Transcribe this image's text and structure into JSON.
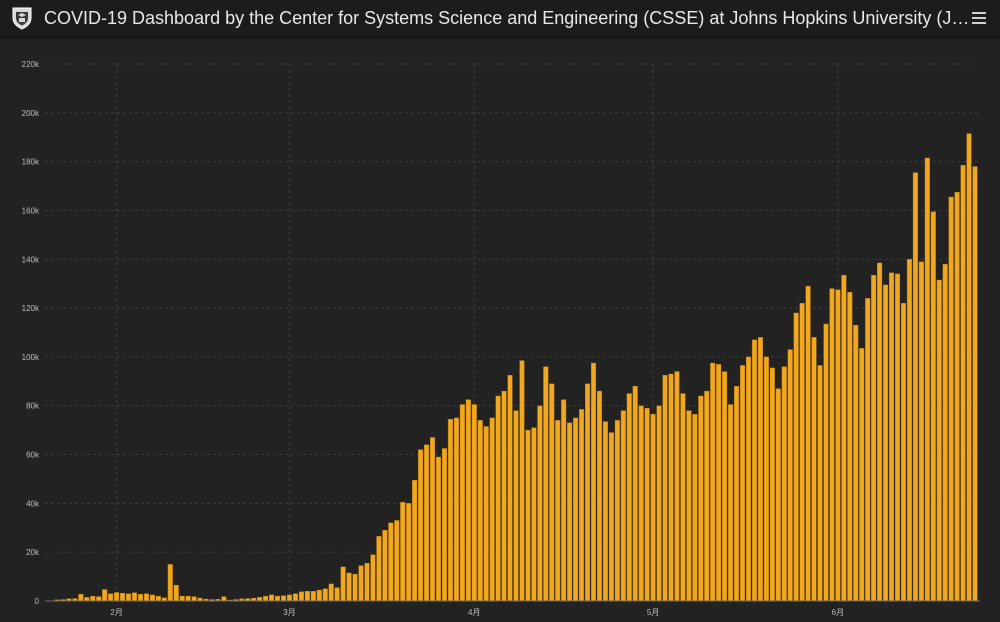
{
  "header": {
    "title": "COVID-19 Dashboard by the Center for Systems Science and Engineering (CSSE) at Johns Hopkins University (J…",
    "logo_icon": "university-crest-icon",
    "menu_icon": "hamburger-menu-icon"
  },
  "colors": {
    "bar": "#f2a81e",
    "bar_outline": "#b67a0c",
    "grid": "#3d3d3d",
    "panel_bg": "#222222"
  },
  "chart_data": {
    "type": "bar",
    "title": "",
    "xlabel": "",
    "ylabel": "",
    "ylim": [
      0,
      220000
    ],
    "yticks": [
      0,
      20000,
      40000,
      60000,
      80000,
      100000,
      120000,
      140000,
      160000,
      180000,
      200000,
      220000
    ],
    "ytick_labels": [
      "0",
      "20k",
      "40k",
      "60k",
      "80k",
      "100k",
      "120k",
      "140k",
      "160k",
      "180k",
      "200k",
      "220k"
    ],
    "x_start": "2020-01-22",
    "xticks": [
      {
        "date": "2020-02-01",
        "label": "2月"
      },
      {
        "date": "2020-03-01",
        "label": "3月"
      },
      {
        "date": "2020-04-01",
        "label": "4月"
      },
      {
        "date": "2020-05-01",
        "label": "5月"
      },
      {
        "date": "2020-06-01",
        "label": "6月"
      }
    ],
    "grid": true,
    "values": [
      500,
      600,
      900,
      1000,
      2800,
      1500,
      2000,
      1800,
      4700,
      3000,
      3500,
      3200,
      3000,
      3400,
      2800,
      3000,
      2500,
      2000,
      1300,
      15000,
      6500,
      2000,
      2000,
      1800,
      1200,
      800,
      600,
      700,
      1800,
      400,
      600,
      900,
      1000,
      1200,
      1500,
      2000,
      2500,
      2000,
      2200,
      2500,
      3000,
      3800,
      4000,
      4000,
      4500,
      5000,
      7000,
      5500,
      14000,
      11500,
      11000,
      14500,
      15500,
      19000,
      26500,
      29000,
      32000,
      33000,
      40500,
      40000,
      49500,
      62000,
      64000,
      67000,
      59000,
      62500,
      74500,
      75000,
      80500,
      82500,
      80500,
      74000,
      71500,
      75000,
      84000,
      86000,
      92500,
      78000,
      98500,
      70000,
      71000,
      80000,
      96000,
      89000,
      74000,
      82500,
      73000,
      75000,
      78500,
      89000,
      97500,
      86000,
      73500,
      69000,
      74000,
      78000,
      85000,
      88000,
      80000,
      79000,
      76500,
      80000,
      92500,
      93000,
      94000,
      85000,
      78000,
      76500,
      84000,
      86000,
      97500,
      97000,
      94000,
      80500,
      88000,
      96500,
      100000,
      107000,
      108000,
      100000,
      95500,
      87000,
      96000,
      103000,
      118000,
      122000,
      129000,
      108000,
      96500,
      113500,
      128000,
      127500,
      133500,
      126500,
      113000,
      103500,
      124000,
      133500,
      138500,
      129500,
      134500,
      134000,
      122000,
      140000,
      175500,
      139000,
      181500,
      159500,
      131500,
      138000,
      165500,
      167500,
      178500,
      191500,
      178000
    ]
  }
}
